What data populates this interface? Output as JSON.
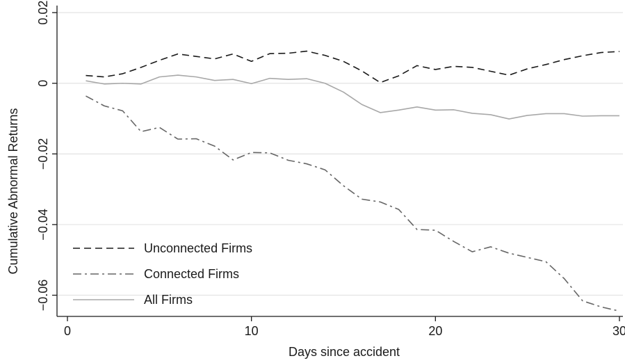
{
  "chart_data": {
    "type": "line",
    "xlabel": "Days since accident",
    "ylabel": "Cumulative Abnormal Returns",
    "xlim": [
      0,
      30
    ],
    "ylim": [
      -0.066,
      0.022
    ],
    "xticks": [
      0,
      10,
      20,
      30
    ],
    "xtick_labels": [
      "0",
      "10",
      "20",
      "30"
    ],
    "yticks": [
      0.02,
      0,
      -0.02,
      -0.04,
      -0.06
    ],
    "ytick_labels": [
      "0.02",
      "0",
      "−0.02",
      "−0.04",
      "−0.06"
    ],
    "grid": "horizontal",
    "legend_position": "bottom-left",
    "x": [
      1,
      2,
      3,
      4,
      5,
      6,
      7,
      8,
      9,
      10,
      11,
      12,
      13,
      14,
      15,
      16,
      17,
      18,
      19,
      20,
      21,
      22,
      23,
      24,
      25,
      26,
      27,
      28,
      29,
      30
    ],
    "series": [
      {
        "name": "Unconnected Firms",
        "color": "#1a1a1a",
        "style": "dashed",
        "values": [
          0.0022,
          0.0018,
          0.0027,
          0.0045,
          0.0065,
          0.0083,
          0.0076,
          0.0069,
          0.0083,
          0.0062,
          0.0084,
          0.0085,
          0.0091,
          0.0079,
          0.0062,
          0.0035,
          0.0002,
          0.0021,
          0.005,
          0.0039,
          0.0048,
          0.0045,
          0.0034,
          0.0023,
          0.0041,
          0.0053,
          0.0067,
          0.0078,
          0.0087,
          0.009
        ]
      },
      {
        "name": "Connected Firms",
        "color": "#666666",
        "style": "dashdot",
        "values": [
          -0.0036,
          -0.0064,
          -0.0078,
          -0.0137,
          -0.0125,
          -0.0158,
          -0.0157,
          -0.0178,
          -0.0217,
          -0.0196,
          -0.0197,
          -0.0218,
          -0.0228,
          -0.0245,
          -0.029,
          -0.0328,
          -0.0336,
          -0.0357,
          -0.0414,
          -0.0416,
          -0.0448,
          -0.0477,
          -0.0463,
          -0.0481,
          -0.0493,
          -0.0505,
          -0.0553,
          -0.0616,
          -0.0633,
          -0.0645
        ]
      },
      {
        "name": "All Firms",
        "color": "#a8a8a8",
        "style": "solid",
        "values": [
          0.0007,
          -0.0002,
          0.0,
          -0.0002,
          0.0018,
          0.0023,
          0.0018,
          0.0008,
          0.0011,
          -0.0001,
          0.0014,
          0.0011,
          0.0013,
          0.0,
          -0.0025,
          -0.006,
          -0.0083,
          -0.0076,
          -0.0067,
          -0.0076,
          -0.0075,
          -0.0085,
          -0.0089,
          -0.0101,
          -0.0091,
          -0.0086,
          -0.0086,
          -0.0093,
          -0.0092,
          -0.0092
        ]
      }
    ]
  }
}
